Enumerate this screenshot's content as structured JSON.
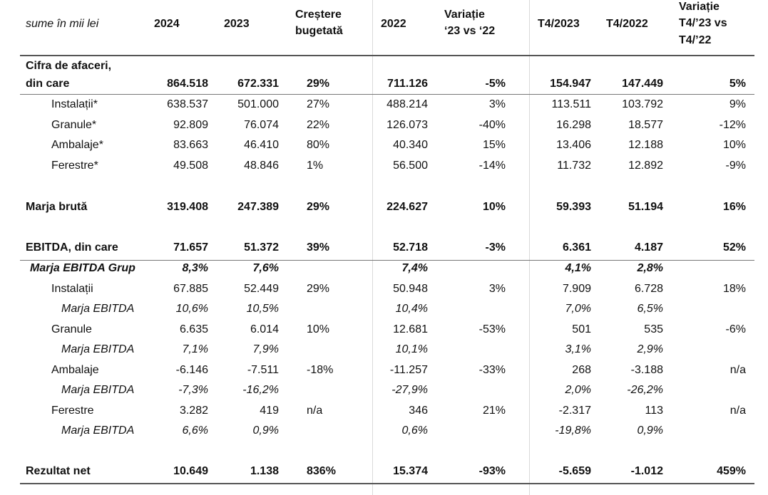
{
  "header": {
    "unit": "sume în mii lei",
    "c2024": "2024",
    "c2023": "2023",
    "growth_l1": "Creștere",
    "growth_l2": "bugetată",
    "c2022": "2022",
    "var_l1": "Variație",
    "var_l2": "‘23 vs ‘22",
    "q2023": "T4/2023",
    "q2022": "T4/2022",
    "qvar_l1": "Variație",
    "qvar_l2": "T4/’23 vs",
    "qvar_l3": "T4/’22"
  },
  "rows": [
    {
      "label": "Cifra de afaceri,",
      "label2": "din care",
      "v": [
        "864.518",
        "672.331",
        "29%",
        "711.126",
        "-5%",
        "154.947",
        "147.449",
        "5%"
      ]
    },
    {
      "label": "Instalații*",
      "v": [
        "638.537",
        "501.000",
        "27%",
        "488.214",
        "3%",
        "113.511",
        "103.792",
        "9%"
      ]
    },
    {
      "label": "Granule*",
      "v": [
        "92.809",
        "76.074",
        "22%",
        "126.073",
        "-40%",
        "16.298",
        "18.577",
        "-12%"
      ]
    },
    {
      "label": "Ambalaje*",
      "v": [
        "83.663",
        "46.410",
        "80%",
        "40.340",
        "15%",
        "13.406",
        "12.188",
        "10%"
      ]
    },
    {
      "label": "Ferestre*",
      "v": [
        "49.508",
        "48.846",
        "1%",
        "56.500",
        "-14%",
        "11.732",
        "12.892",
        "-9%"
      ]
    },
    {
      "label": "Marja brută",
      "v": [
        "319.408",
        "247.389",
        "29%",
        "224.627",
        "10%",
        "59.393",
        "51.194",
        "16%"
      ]
    },
    {
      "label": "EBITDA, din care",
      "v": [
        "71.657",
        "51.372",
        "39%",
        "52.718",
        "-3%",
        "6.361",
        "4.187",
        "52%"
      ]
    },
    {
      "label": "Marja EBITDA Grup",
      "v": [
        "8,3%",
        "7,6%",
        "",
        "7,4%",
        "",
        "4,1%",
        "2,8%",
        ""
      ]
    },
    {
      "label": "Instalații",
      "v": [
        "67.885",
        "52.449",
        "29%",
        "50.948",
        "3%",
        "7.909",
        "6.728",
        "18%"
      ]
    },
    {
      "label": "Marja EBITDA",
      "v": [
        "10,6%",
        "10,5%",
        "",
        "10,4%",
        "",
        "7,0%",
        "6,5%",
        ""
      ]
    },
    {
      "label": "Granule",
      "v": [
        "6.635",
        "6.014",
        "10%",
        "12.681",
        "-53%",
        "501",
        "535",
        "-6%"
      ]
    },
    {
      "label": "Marja EBITDA",
      "v": [
        "7,1%",
        "7,9%",
        "",
        "10,1%",
        "",
        "3,1%",
        "2,9%",
        ""
      ]
    },
    {
      "label": "Ambalaje",
      "v": [
        "-6.146",
        "-7.511",
        "-18%",
        "-11.257",
        "-33%",
        "268",
        "-3.188",
        "n/a"
      ]
    },
    {
      "label": "Marja EBITDA",
      "v": [
        "-7,3%",
        "-16,2%",
        "",
        "-27,9%",
        "",
        "2,0%",
        "-26,2%",
        ""
      ]
    },
    {
      "label": "Ferestre",
      "v": [
        "3.282",
        "419",
        "n/a",
        "346",
        "21%",
        "-2.317",
        "113",
        "n/a"
      ]
    },
    {
      "label": "Marja EBITDA",
      "v": [
        "6,6%",
        "0,9%",
        "",
        "0,6%",
        "",
        "-19,8%",
        "0,9%",
        ""
      ]
    },
    {
      "label": "Rezultat net",
      "v": [
        "10.649",
        "1.138",
        "836%",
        "15.374",
        "-93%",
        "-5.659",
        "-1.012",
        "459%"
      ]
    }
  ]
}
